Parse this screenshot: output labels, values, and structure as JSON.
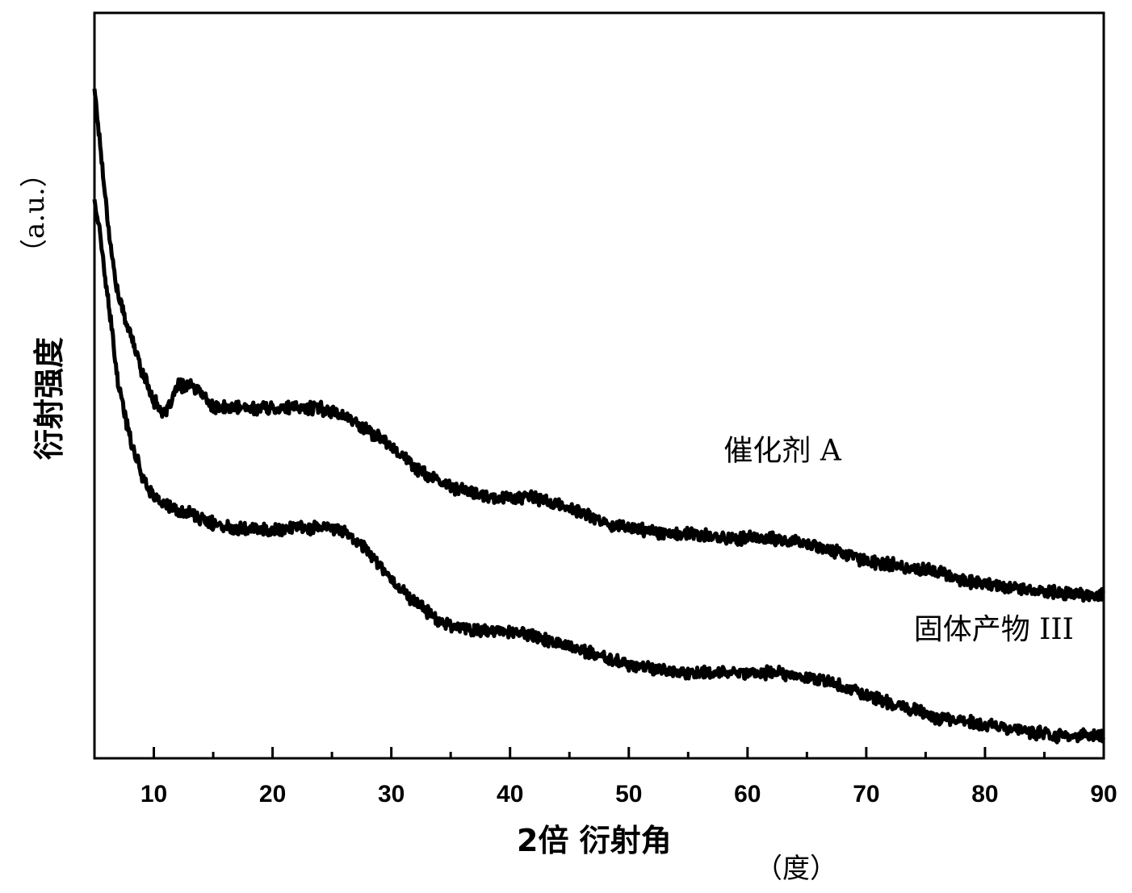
{
  "chart_data": {
    "type": "line",
    "xlabel": "2倍 衍射角",
    "xlabel_unit": "（度）",
    "ylabel": "衍射强度",
    "ylabel_unit": "（a.u.）",
    "xlim": [
      5,
      90
    ],
    "ylim": [
      0,
      100
    ],
    "x_ticks": [
      10,
      20,
      30,
      40,
      50,
      60,
      70,
      80,
      90
    ],
    "y_ticks_shown": false,
    "grid": false,
    "series": [
      {
        "name": "催化剂 A",
        "color": "#000000",
        "points": [
          [
            5,
            90
          ],
          [
            5.5,
            82
          ],
          [
            6,
            74
          ],
          [
            6.5,
            67
          ],
          [
            7,
            62
          ],
          [
            8,
            57
          ],
          [
            9,
            52
          ],
          [
            10,
            48
          ],
          [
            11,
            46
          ],
          [
            12,
            50
          ],
          [
            13,
            50
          ],
          [
            14,
            49
          ],
          [
            15,
            47
          ],
          [
            16,
            47
          ],
          [
            18,
            47
          ],
          [
            20,
            47
          ],
          [
            22,
            47
          ],
          [
            24,
            47
          ],
          [
            26,
            46
          ],
          [
            28,
            44
          ],
          [
            30,
            42
          ],
          [
            32,
            39
          ],
          [
            34,
            37
          ],
          [
            36,
            36
          ],
          [
            38,
            35
          ],
          [
            40,
            35
          ],
          [
            42,
            35
          ],
          [
            44,
            34
          ],
          [
            46,
            33
          ],
          [
            48,
            31.5
          ],
          [
            50,
            31
          ],
          [
            52,
            30.5
          ],
          [
            54,
            30
          ],
          [
            56,
            30
          ],
          [
            58,
            29.5
          ],
          [
            60,
            29.5
          ],
          [
            62,
            29.5
          ],
          [
            64,
            29
          ],
          [
            66,
            28.5
          ],
          [
            68,
            27.5
          ],
          [
            70,
            26.5
          ],
          [
            72,
            26
          ],
          [
            74,
            25.5
          ],
          [
            76,
            25
          ],
          [
            78,
            24
          ],
          [
            80,
            23.5
          ],
          [
            82,
            23
          ],
          [
            84,
            22.5
          ],
          [
            86,
            22.2
          ],
          [
            88,
            22
          ],
          [
            90,
            22
          ]
        ]
      },
      {
        "name": "固体产物 III",
        "color": "#000000",
        "points": [
          [
            5,
            75
          ],
          [
            5.5,
            70
          ],
          [
            6,
            63
          ],
          [
            6.5,
            57
          ],
          [
            7,
            50
          ],
          [
            8,
            43
          ],
          [
            9,
            38
          ],
          [
            10,
            35
          ],
          [
            11,
            34
          ],
          [
            12,
            33
          ],
          [
            13,
            33
          ],
          [
            14,
            32
          ],
          [
            15,
            31.5
          ],
          [
            16,
            31
          ],
          [
            18,
            31
          ],
          [
            20,
            30.5
          ],
          [
            22,
            31
          ],
          [
            24,
            31
          ],
          [
            26,
            30.5
          ],
          [
            28,
            28
          ],
          [
            30,
            24
          ],
          [
            32,
            21
          ],
          [
            34,
            18.5
          ],
          [
            36,
            17.5
          ],
          [
            38,
            17
          ],
          [
            40,
            17
          ],
          [
            42,
            16.5
          ],
          [
            44,
            15.5
          ],
          [
            46,
            14.5
          ],
          [
            48,
            13.5
          ],
          [
            50,
            12.5
          ],
          [
            52,
            12
          ],
          [
            54,
            11.5
          ],
          [
            56,
            11.5
          ],
          [
            58,
            11.5
          ],
          [
            60,
            11.5
          ],
          [
            62,
            11.5
          ],
          [
            64,
            11
          ],
          [
            66,
            10.5
          ],
          [
            68,
            9.5
          ],
          [
            70,
            8.5
          ],
          [
            72,
            7.5
          ],
          [
            74,
            6.5
          ],
          [
            76,
            5.5
          ],
          [
            78,
            5
          ],
          [
            80,
            4.5
          ],
          [
            82,
            4
          ],
          [
            84,
            3.5
          ],
          [
            86,
            3
          ],
          [
            88,
            3
          ],
          [
            90,
            3
          ]
        ]
      }
    ],
    "annotations": [
      {
        "text": "催化剂 A",
        "x": 58,
        "y": 40
      },
      {
        "text": "固体产物 III",
        "x": 74,
        "y": 16
      }
    ]
  }
}
